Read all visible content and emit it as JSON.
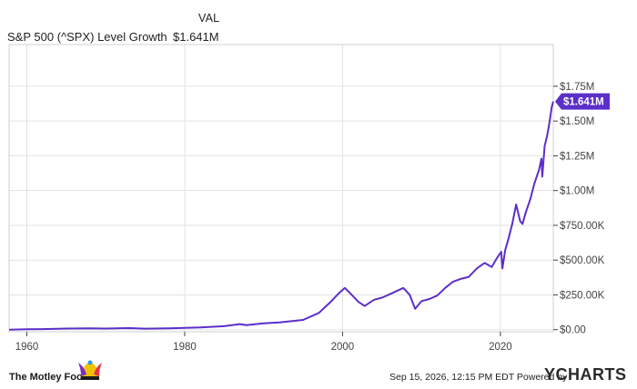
{
  "header": {
    "column_label": "VAL",
    "series_name": "S&P 500 (^SPX) Level Growth",
    "series_value": "$1.641M"
  },
  "chart_data": {
    "type": "line",
    "title": "",
    "xlabel": "",
    "ylabel": "",
    "grid": true,
    "y_axis_side": "right",
    "xlim": [
      1957.75,
      2026.7
    ],
    "ylim": [
      -15000,
      2050000
    ],
    "x_ticks": [
      {
        "value": 1960,
        "label": "1960"
      },
      {
        "value": 1980,
        "label": "1980"
      },
      {
        "value": 2000,
        "label": "2000"
      },
      {
        "value": 2020,
        "label": "2020"
      }
    ],
    "y_ticks": [
      {
        "value": 0,
        "label": "$0.00"
      },
      {
        "value": 250000,
        "label": "$250.00K"
      },
      {
        "value": 500000,
        "label": "$500.00K"
      },
      {
        "value": 750000,
        "label": "$750.00K"
      },
      {
        "value": 1000000,
        "label": "$1.00M"
      },
      {
        "value": 1250000,
        "label": "$1.25M"
      },
      {
        "value": 1500000,
        "label": "$1.50M"
      },
      {
        "value": 1750000,
        "label": "$1.75M"
      }
    ],
    "series": [
      {
        "name": "S&P 500 (^SPX) Level Growth",
        "color": "#5b2fc9",
        "last_value_label": "$1.641M",
        "x": [
          1957.75,
          1960,
          1962,
          1965,
          1968,
          1970,
          1973,
          1975,
          1978,
          1980,
          1982,
          1985,
          1987,
          1987.8,
          1990,
          1992,
          1995,
          1997,
          1998.5,
          1999.5,
          2000.3,
          2001,
          2002,
          2002.8,
          2004,
          2005,
          2006,
          2007.7,
          2008.5,
          2009.2,
          2010,
          2011,
          2012,
          2013,
          2014,
          2015,
          2016,
          2017,
          2018,
          2018.9,
          2019.5,
          2020.1,
          2020.25,
          2020.6,
          2021,
          2021.5,
          2022.0,
          2022.5,
          2022.8,
          2023.2,
          2023.8,
          2024.3,
          2024.9,
          2025.2,
          2025.3,
          2025.6,
          2025.9,
          2026.1,
          2026.3,
          2026.5,
          2026.7
        ],
        "y": [
          0,
          3000,
          4000,
          8000,
          10000,
          8000,
          11000,
          7000,
          10000,
          13000,
          16000,
          25000,
          40000,
          33000,
          45000,
          52000,
          70000,
          120000,
          200000,
          260000,
          300000,
          260000,
          200000,
          170000,
          215000,
          230000,
          255000,
          300000,
          250000,
          150000,
          205000,
          220000,
          245000,
          300000,
          345000,
          365000,
          380000,
          440000,
          480000,
          450000,
          510000,
          560000,
          440000,
          570000,
          650000,
          760000,
          900000,
          780000,
          760000,
          840000,
          940000,
          1050000,
          1150000,
          1230000,
          1100000,
          1320000,
          1390000,
          1450000,
          1520000,
          1600000,
          1641000
        ]
      }
    ]
  },
  "footer": {
    "logo_text": "The Motley Fool",
    "timestamp": "Sep 15, 2026, 12:15 PM EDT",
    "powered_by": "Powered by",
    "brand": "YCHARTS"
  }
}
